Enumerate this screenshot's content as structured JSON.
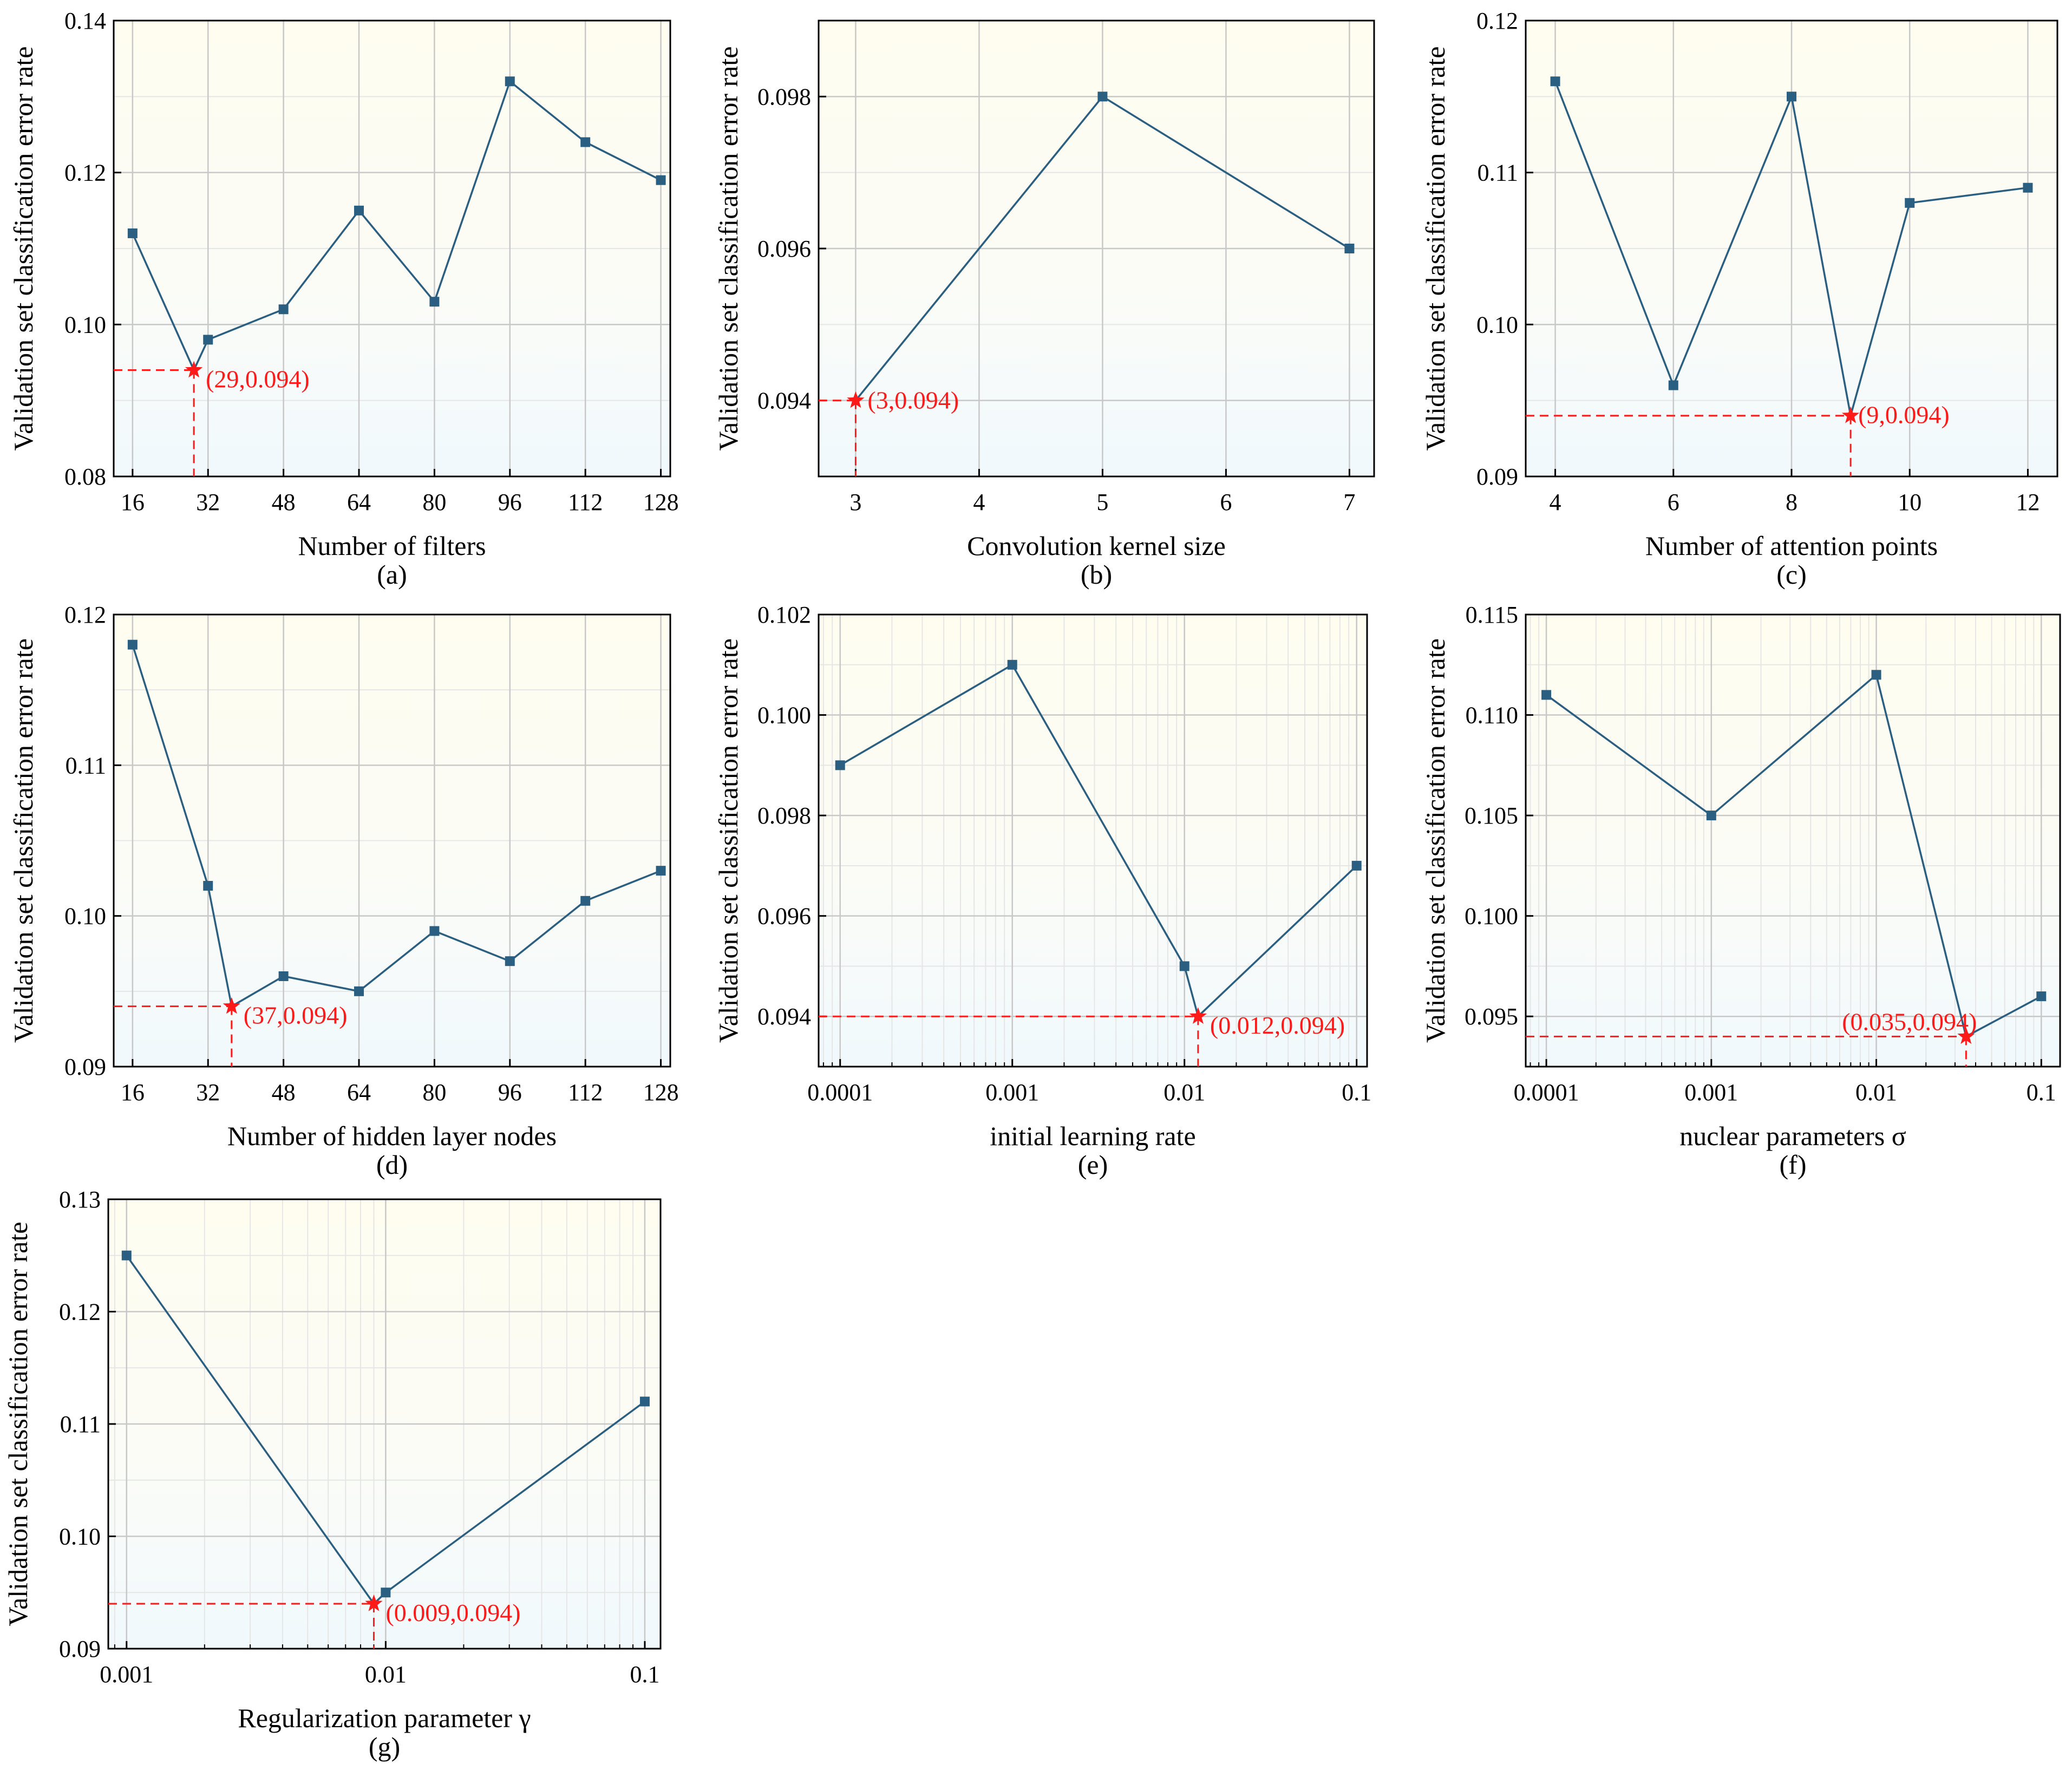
{
  "figure": {
    "ylabel": "Validation set classification error rate"
  },
  "colors": {
    "line": "#2b5f82",
    "marker": "#2b5f82",
    "highlight": "#ff1a1a",
    "grid": "#c8c8c8",
    "minor_grid": "#e6e6e6",
    "bg_top": "#fefdf0",
    "bg_bottom": "#f1f9fd",
    "axis": "#000000"
  },
  "chart_data": [
    {
      "id": "a",
      "type": "line",
      "scale": "linear",
      "xlabel": "Number of filters",
      "caption": "(a)",
      "ylabel": "Validation set classification error rate",
      "x": [
        16,
        32,
        48,
        64,
        80,
        96,
        112,
        128
      ],
      "y": [
        0.112,
        0.098,
        0.102,
        0.115,
        0.103,
        0.132,
        0.124,
        0.119
      ],
      "xlim": [
        12,
        130
      ],
      "ylim": [
        0.08,
        0.14
      ],
      "xticks": [
        16,
        32,
        48,
        64,
        80,
        96,
        112,
        128
      ],
      "xtick_labels": [
        "16",
        "32",
        "48",
        "64",
        "80",
        "96",
        "112",
        "128"
      ],
      "yticks": [
        0.08,
        0.1,
        0.12,
        0.14
      ],
      "ytick_labels": [
        "0.08",
        "0.10",
        "0.12",
        "0.14"
      ],
      "yminor": [
        0.09,
        0.11,
        0.13
      ],
      "optimum": {
        "x": 29,
        "y": 0.094,
        "label": "(29,0.094)",
        "insert_after": 0
      },
      "grid": true
    },
    {
      "id": "b",
      "type": "line",
      "scale": "linear",
      "xlabel": "Convolution kernel size",
      "caption": "(b)",
      "ylabel": "Validation set classification error rate",
      "x": [
        5,
        7
      ],
      "y": [
        0.098,
        0.096
      ],
      "xlim": [
        2.7,
        7.2
      ],
      "ylim": [
        0.093,
        0.099
      ],
      "xticks": [
        3,
        4,
        5,
        6,
        7
      ],
      "xtick_labels": [
        "3",
        "4",
        "5",
        "6",
        "7"
      ],
      "yticks": [
        0.094,
        0.096,
        0.098
      ],
      "ytick_labels": [
        "0.094",
        "0.096",
        "0.098"
      ],
      "yminor": [
        0.095,
        0.097
      ],
      "optimum": {
        "x": 3,
        "y": 0.094,
        "label": "(3,0.094)",
        "insert_after": -1
      },
      "grid": true
    },
    {
      "id": "c",
      "type": "line",
      "scale": "linear",
      "xlabel": "Number of attention points",
      "caption": "(c)",
      "ylabel": "Validation set classification error rate",
      "x": [
        4,
        6,
        8,
        10,
        12
      ],
      "y": [
        0.116,
        0.096,
        0.115,
        0.108,
        0.109
      ],
      "xlim": [
        3.5,
        12.5
      ],
      "ylim": [
        0.09,
        0.12
      ],
      "xticks": [
        4,
        6,
        8,
        10,
        12
      ],
      "xtick_labels": [
        "4",
        "6",
        "8",
        "10",
        "12"
      ],
      "yticks": [
        0.09,
        0.1,
        0.11,
        0.12
      ],
      "ytick_labels": [
        "0.09",
        "0.10",
        "0.11",
        "0.12"
      ],
      "yminor": [
        0.095,
        0.105,
        0.115
      ],
      "optimum": {
        "x": 9,
        "y": 0.094,
        "label": "(9,0.094)",
        "insert_after": 2
      },
      "grid": true
    },
    {
      "id": "d",
      "type": "line",
      "scale": "linear",
      "xlabel": "Number of hidden layer nodes",
      "caption": "(d)",
      "ylabel": "Validation set classification error rate",
      "x": [
        16,
        32,
        48,
        64,
        80,
        96,
        112,
        128
      ],
      "y": [
        0.118,
        0.102,
        0.096,
        0.095,
        0.099,
        0.097,
        0.101,
        0.103
      ],
      "xlim": [
        12,
        130
      ],
      "ylim": [
        0.09,
        0.12
      ],
      "xticks": [
        16,
        32,
        48,
        64,
        80,
        96,
        112,
        128
      ],
      "xtick_labels": [
        "16",
        "32",
        "48",
        "64",
        "80",
        "96",
        "112",
        "128"
      ],
      "yticks": [
        0.09,
        0.1,
        0.11,
        0.12
      ],
      "ytick_labels": [
        "0.09",
        "0.10",
        "0.11",
        "0.12"
      ],
      "yminor": [
        0.095,
        0.105,
        0.115
      ],
      "optimum": {
        "x": 37,
        "y": 0.094,
        "label": "(37,0.094)",
        "insert_after": 1
      },
      "grid": true
    },
    {
      "id": "e",
      "type": "line",
      "scale": "log",
      "xlabel": "initial learning rate",
      "caption": "(e)",
      "ylabel": "Validation set classification error rate",
      "x": [
        0.0001,
        0.001,
        0.01,
        0.1
      ],
      "y": [
        0.099,
        0.101,
        0.095,
        0.097
      ],
      "xlim": [
        7.5e-05,
        0.115
      ],
      "ylim": [
        0.093,
        0.102
      ],
      "xticks": [
        0.0001,
        0.001,
        0.01,
        0.1
      ],
      "xtick_labels": [
        "0.0001",
        "0.001",
        "0.01",
        "0.1"
      ],
      "yticks": [
        0.094,
        0.096,
        0.098,
        0.1,
        0.102
      ],
      "ytick_labels": [
        "0.094",
        "0.096",
        "0.098",
        "0.100",
        "0.102"
      ],
      "yminor": [
        0.095,
        0.097,
        0.099,
        0.101
      ],
      "optimum": {
        "x": 0.012,
        "y": 0.094,
        "label": "(0.012,0.094)",
        "insert_after": 2
      },
      "grid": true
    },
    {
      "id": "f",
      "type": "line",
      "scale": "log",
      "xlabel": "nuclear parameters σ",
      "caption": "(f)",
      "ylabel": "Validation set classification error rate",
      "x": [
        0.0001,
        0.001,
        0.01,
        0.1
      ],
      "y": [
        0.111,
        0.105,
        0.112,
        0.096
      ],
      "xlim": [
        7.5e-05,
        0.13
      ],
      "ylim": [
        0.0925,
        0.115
      ],
      "xticks": [
        0.0001,
        0.001,
        0.01,
        0.1
      ],
      "xtick_labels": [
        "0.0001",
        "0.001",
        "0.01",
        "0.1"
      ],
      "yticks": [
        0.095,
        0.1,
        0.105,
        0.11,
        0.115
      ],
      "ytick_labels": [
        "0.095",
        "0.100",
        "0.105",
        "0.110",
        "0.115"
      ],
      "yminor": [
        0.0975,
        0.1025,
        0.1075,
        0.1125
      ],
      "optimum": {
        "x": 0.035,
        "y": 0.094,
        "label": "(0.035,0.094)",
        "insert_after": 2
      },
      "grid": true
    },
    {
      "id": "g",
      "type": "line",
      "scale": "log",
      "xlabel": "Regularization parameter γ",
      "caption": "(g)",
      "ylabel": "Validation set classification error rate",
      "x": [
        0.001,
        0.01,
        0.1
      ],
      "y": [
        0.125,
        0.095,
        0.112
      ],
      "xlim": [
        0.00085,
        0.115
      ],
      "ylim": [
        0.09,
        0.13
      ],
      "xticks": [
        0.001,
        0.01,
        0.1
      ],
      "xtick_labels": [
        "0.001",
        "0.01",
        "0.1"
      ],
      "yticks": [
        0.09,
        0.1,
        0.11,
        0.12,
        0.13
      ],
      "ytick_labels": [
        "0.09",
        "0.10",
        "0.11",
        "0.12",
        "0.13"
      ],
      "yminor": [
        0.095,
        0.105,
        0.115,
        0.125
      ],
      "optimum": {
        "x": 0.009,
        "y": 0.094,
        "label": "(0.009,0.094)",
        "insert_after": 0
      },
      "grid": true
    }
  ]
}
